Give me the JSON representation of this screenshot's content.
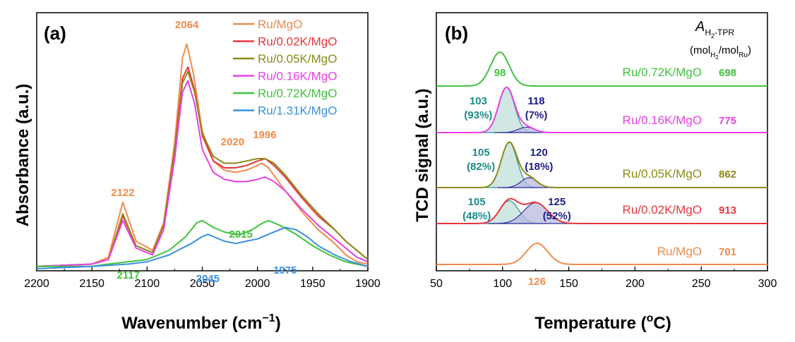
{
  "chart_data": [
    {
      "type": "line",
      "panel_label": "(a)",
      "xlabel": "Wavenumber (cm",
      "xlabel_sup": "−1",
      "xlabel_close": ")",
      "ylabel": "Absorbance (a.u.)",
      "xlim": [
        2200,
        1900
      ],
      "x_reversed": true,
      "x_ticks": [
        2200,
        2150,
        2100,
        2050,
        2000,
        1950,
        1900
      ],
      "legend_position": "top-right",
      "series": [
        {
          "name": "Ru/MgO",
          "color": "#f28a4a",
          "points": [
            [
              2200,
              0.01
            ],
            [
              2150,
              0.02
            ],
            [
              2135,
              0.05
            ],
            [
              2122,
              0.29
            ],
            [
              2110,
              0.12
            ],
            [
              2095,
              0.08
            ],
            [
              2085,
              0.2
            ],
            [
              2075,
              0.55
            ],
            [
              2068,
              0.92
            ],
            [
              2064,
              0.98
            ],
            [
              2058,
              0.85
            ],
            [
              2050,
              0.6
            ],
            [
              2040,
              0.47
            ],
            [
              2030,
              0.43
            ],
            [
              2020,
              0.42
            ],
            [
              2010,
              0.43
            ],
            [
              2000,
              0.45
            ],
            [
              1996,
              0.46
            ],
            [
              1990,
              0.44
            ],
            [
              1975,
              0.34
            ],
            [
              1960,
              0.25
            ],
            [
              1945,
              0.17
            ],
            [
              1930,
              0.11
            ],
            [
              1920,
              0.06
            ],
            [
              1910,
              0.03
            ],
            [
              1900,
              0.02
            ]
          ]
        },
        {
          "name": "Ru/0.02K/MgO",
          "color": "#e8363c",
          "points": [
            [
              2200,
              0.01
            ],
            [
              2150,
              0.02
            ],
            [
              2135,
              0.04
            ],
            [
              2122,
              0.23
            ],
            [
              2110,
              0.1
            ],
            [
              2095,
              0.07
            ],
            [
              2085,
              0.19
            ],
            [
              2075,
              0.52
            ],
            [
              2068,
              0.83
            ],
            [
              2063,
              0.88
            ],
            [
              2057,
              0.78
            ],
            [
              2050,
              0.58
            ],
            [
              2040,
              0.47
            ],
            [
              2030,
              0.44
            ],
            [
              2020,
              0.44
            ],
            [
              2010,
              0.45
            ],
            [
              2000,
              0.47
            ],
            [
              1993,
              0.48
            ],
            [
              1985,
              0.45
            ],
            [
              1975,
              0.4
            ],
            [
              1960,
              0.31
            ],
            [
              1945,
              0.23
            ],
            [
              1930,
              0.17
            ],
            [
              1920,
              0.12
            ],
            [
              1910,
              0.08
            ],
            [
              1900,
              0.04
            ]
          ]
        },
        {
          "name": "Ru/0.05K/MgO",
          "color": "#8c8a1a",
          "points": [
            [
              2200,
              0.01
            ],
            [
              2150,
              0.02
            ],
            [
              2135,
              0.04
            ],
            [
              2122,
              0.24
            ],
            [
              2110,
              0.1
            ],
            [
              2095,
              0.07
            ],
            [
              2085,
              0.19
            ],
            [
              2075,
              0.51
            ],
            [
              2068,
              0.81
            ],
            [
              2063,
              0.86
            ],
            [
              2057,
              0.77
            ],
            [
              2050,
              0.59
            ],
            [
              2040,
              0.49
            ],
            [
              2030,
              0.46
            ],
            [
              2020,
              0.46
            ],
            [
              2010,
              0.47
            ],
            [
              2000,
              0.48
            ],
            [
              1993,
              0.48
            ],
            [
              1985,
              0.46
            ],
            [
              1975,
              0.41
            ],
            [
              1960,
              0.32
            ],
            [
              1945,
              0.24
            ],
            [
              1930,
              0.17
            ],
            [
              1920,
              0.12
            ],
            [
              1910,
              0.08
            ],
            [
              1900,
              0.04
            ]
          ]
        },
        {
          "name": "Ru/0.16K/MgO",
          "color": "#e640e6",
          "points": [
            [
              2200,
              0.01
            ],
            [
              2150,
              0.02
            ],
            [
              2135,
              0.04
            ],
            [
              2122,
              0.21
            ],
            [
              2110,
              0.09
            ],
            [
              2095,
              0.06
            ],
            [
              2085,
              0.17
            ],
            [
              2075,
              0.48
            ],
            [
              2068,
              0.77
            ],
            [
              2063,
              0.82
            ],
            [
              2057,
              0.72
            ],
            [
              2050,
              0.52
            ],
            [
              2040,
              0.42
            ],
            [
              2030,
              0.39
            ],
            [
              2020,
              0.38
            ],
            [
              2010,
              0.38
            ],
            [
              2000,
              0.39
            ],
            [
              1993,
              0.4
            ],
            [
              1985,
              0.38
            ],
            [
              1975,
              0.34
            ],
            [
              1960,
              0.26
            ],
            [
              1945,
              0.19
            ],
            [
              1930,
              0.13
            ],
            [
              1920,
              0.09
            ],
            [
              1910,
              0.05
            ],
            [
              1900,
              0.03
            ]
          ]
        },
        {
          "name": "Ru/0.72K/MgO",
          "color": "#3fc23c",
          "points": [
            [
              2200,
              0.01
            ],
            [
              2150,
              0.01
            ],
            [
              2135,
              0.02
            ],
            [
              2117,
              0.03
            ],
            [
              2100,
              0.04
            ],
            [
              2080,
              0.08
            ],
            [
              2065,
              0.14
            ],
            [
              2055,
              0.2
            ],
            [
              2050,
              0.21
            ],
            [
              2040,
              0.18
            ],
            [
              2030,
              0.16
            ],
            [
              2020,
              0.15
            ],
            [
              2015,
              0.15
            ],
            [
              2005,
              0.17
            ],
            [
              1995,
              0.2
            ],
            [
              1990,
              0.21
            ],
            [
              1980,
              0.19
            ],
            [
              1965,
              0.15
            ],
            [
              1950,
              0.1
            ],
            [
              1935,
              0.06
            ],
            [
              1920,
              0.03
            ],
            [
              1900,
              0.01
            ]
          ]
        },
        {
          "name": "Ru/1.31K/MgO",
          "color": "#3a8fe0",
          "points": [
            [
              2200,
              0.0
            ],
            [
              2150,
              0.01
            ],
            [
              2117,
              0.02
            ],
            [
              2100,
              0.03
            ],
            [
              2080,
              0.06
            ],
            [
              2060,
              0.11
            ],
            [
              2050,
              0.14
            ],
            [
              2045,
              0.15
            ],
            [
              2040,
              0.14
            ],
            [
              2030,
              0.12
            ],
            [
              2020,
              0.11
            ],
            [
              2010,
              0.12
            ],
            [
              2000,
              0.13
            ],
            [
              1990,
              0.15
            ],
            [
              1980,
              0.17
            ],
            [
              1975,
              0.18
            ],
            [
              1965,
              0.17
            ],
            [
              1955,
              0.14
            ],
            [
              1945,
              0.1
            ],
            [
              1930,
              0.06
            ],
            [
              1915,
              0.03
            ],
            [
              1900,
              0.01
            ]
          ]
        }
      ],
      "annotations": [
        {
          "text": "2064",
          "x": 2064,
          "color": "#f28a4a"
        },
        {
          "text": "2122",
          "x": 2122,
          "color": "#f28a4a"
        },
        {
          "text": "2020",
          "x": 2020,
          "color": "#f28a4a"
        },
        {
          "text": "1996",
          "x": 1996,
          "color": "#f28a4a"
        },
        {
          "text": "2117",
          "x": 2117,
          "color": "#3fc23c"
        },
        {
          "text": "2015",
          "x": 2015,
          "color": "#3fc23c"
        },
        {
          "text": "2045",
          "x": 2045,
          "color": "#3a8fe0"
        },
        {
          "text": "1975",
          "x": 1975,
          "color": "#3a8fe0"
        }
      ]
    },
    {
      "type": "line",
      "panel_label": "(b)",
      "xlabel": "Temperature (",
      "xlabel_sup": "o",
      "xlabel_close": "C)",
      "ylabel": "TCD signal (a.u.)",
      "xlim": [
        50,
        300
      ],
      "x_ticks": [
        50,
        100,
        150,
        200,
        250,
        300
      ],
      "h2_header": {
        "A": "A",
        "sub1": "H",
        "sub2": "2",
        "sub3": "-TPR",
        "unit_open": "(mol",
        "unit_mid": "/mol",
        "unit_sub_ru": "Ru",
        "unit_close": ")"
      },
      "traces": [
        {
          "name": "Ru/0.72K/MgO",
          "color": "#3fc23c",
          "h2_uptake": "698",
          "peaks": [
            {
              "center": 98,
              "sigma": 7,
              "label": "98",
              "label_color": "#3fc23c"
            }
          ],
          "fit": false
        },
        {
          "name": "Ru/0.16K/MgO",
          "color": "#e640e6",
          "h2_uptake": "775",
          "peaks": [
            {
              "center": 103,
              "sigma": 6,
              "label": "103",
              "pct": "(93%)",
              "label_color": "#1e8a8a",
              "fill": "#bfe0da",
              "line": "#2e8f8f"
            },
            {
              "center": 118,
              "sigma": 6,
              "label": "118",
              "pct": "(7%)",
              "label_color": "#1c1c8c",
              "fill": "#b9b9e0",
              "line": "#3030a0"
            }
          ],
          "fit": true
        },
        {
          "name": "Ru/0.05K/MgO",
          "color": "#8c8a1a",
          "h2_uptake": "862",
          "peaks": [
            {
              "center": 105,
              "sigma": 6,
              "label": "105",
              "pct": "(82%)",
              "label_color": "#1e8a8a",
              "fill": "#bfe0da",
              "line": "#2e8f8f"
            },
            {
              "center": 120,
              "sigma": 6,
              "label": "120",
              "pct": "(18%)",
              "label_color": "#1c1c8c",
              "fill": "#b9b9e0",
              "line": "#3030a0"
            }
          ],
          "fit": true
        },
        {
          "name": "Ru/0.02K/MgO",
          "color": "#e8363c",
          "h2_uptake": "913",
          "peaks": [
            {
              "center": 105,
              "sigma": 7,
              "label": "105",
              "pct": "(48%)",
              "label_color": "#1e8a8a",
              "fill": "#bfe0da",
              "line": "#2e8f8f"
            },
            {
              "center": 125,
              "sigma": 9,
              "label": "125",
              "pct": "(52%)",
              "label_color": "#1c1c8c",
              "fill": "#b9b9e0",
              "line": "#3030a0"
            }
          ],
          "fit": true
        },
        {
          "name": "Ru/MgO",
          "color": "#f28a4a",
          "h2_uptake": "701",
          "peaks": [
            {
              "center": 126,
              "sigma": 8,
              "label": "126",
              "label_color": "#f28a4a"
            }
          ],
          "fit": false
        }
      ]
    }
  ]
}
